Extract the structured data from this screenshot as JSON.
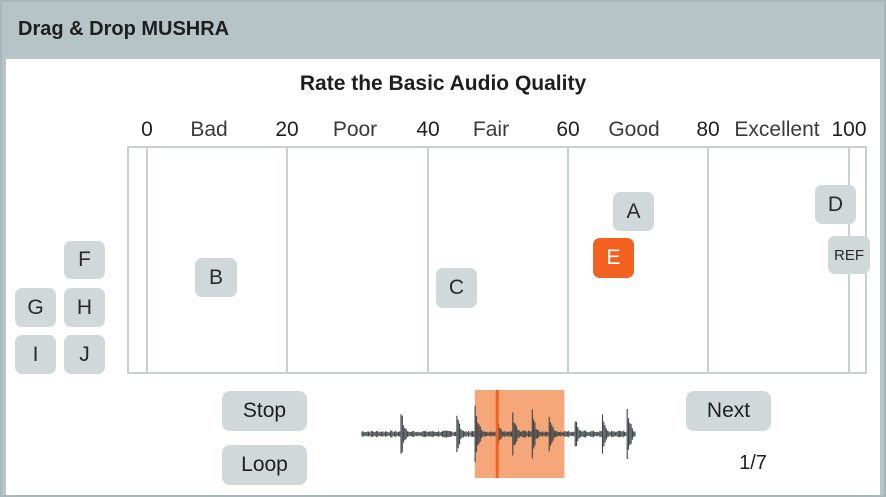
{
  "window": {
    "title": "Drag & Drop MUSHRA"
  },
  "heading": "Rate the Basic Audio Quality",
  "scale": {
    "ticks": [
      {
        "label": "0",
        "value": 0
      },
      {
        "label": "20",
        "value": 20
      },
      {
        "label": "40",
        "value": 40
      },
      {
        "label": "60",
        "value": 60
      },
      {
        "label": "80",
        "value": 80
      },
      {
        "label": "100",
        "value": 100
      }
    ],
    "categories": [
      {
        "label": "Bad",
        "center": 10
      },
      {
        "label": "Poor",
        "center": 30
      },
      {
        "label": "Fair",
        "center": 50
      },
      {
        "label": "Good",
        "center": 70
      },
      {
        "label": "Excellent",
        "center": 90
      }
    ]
  },
  "conditions": {
    "rated": [
      {
        "label": "A",
        "rating": 72
      },
      {
        "label": "B",
        "rating": 10
      },
      {
        "label": "C",
        "rating": 52
      },
      {
        "label": "D",
        "rating": 98
      },
      {
        "label": "E",
        "rating": 67,
        "active": true
      },
      {
        "label": "REF",
        "rating": 100
      }
    ],
    "unrated": [
      "F",
      "G",
      "H",
      "I",
      "J"
    ]
  },
  "controls": {
    "stop": "Stop",
    "loop": "Loop",
    "next": "Next"
  },
  "progress": {
    "counter": "1/7"
  },
  "waveform": {
    "selection_start": 0.41,
    "selection_end": 0.73,
    "playhead": 0.49
  },
  "colors": {
    "accent": "#f2611f",
    "selection": "#f5a77a",
    "chip": "#d0d8da",
    "grid": "#c9d1d3"
  }
}
